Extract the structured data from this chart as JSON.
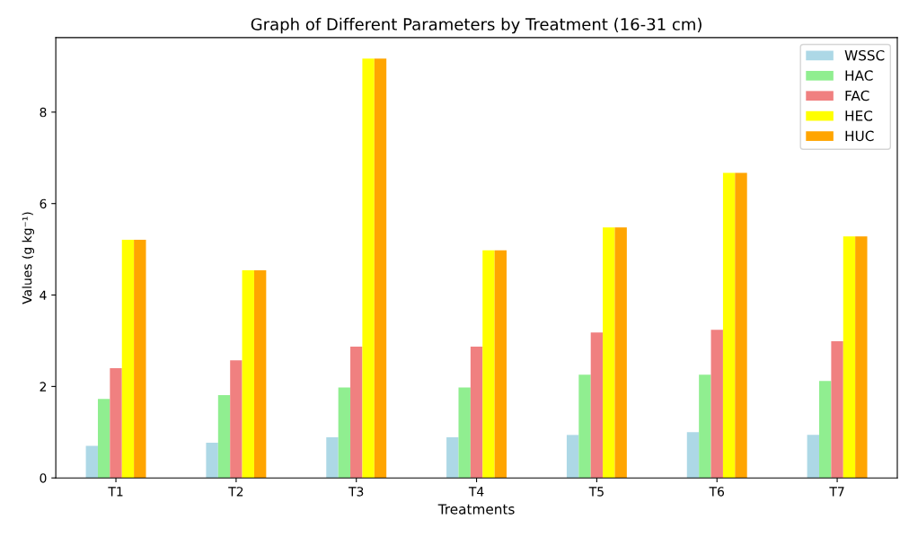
{
  "chart_data": {
    "type": "bar",
    "title": "Graph of Different Parameters by Treatment (16-31 cm)",
    "xlabel": "Treatments",
    "ylabel": "Values (g kg⁻¹)",
    "categories": [
      "T1",
      "T2",
      "T3",
      "T4",
      "T5",
      "T6",
      "T7"
    ],
    "series": [
      {
        "name": "WSSC",
        "color": "#add8e6",
        "values": [
          0.7,
          0.77,
          0.89,
          0.89,
          0.94,
          1.0,
          0.94
        ]
      },
      {
        "name": "HAC",
        "color": "#90ee90",
        "values": [
          1.73,
          1.81,
          1.98,
          1.98,
          2.26,
          2.26,
          2.12
        ]
      },
      {
        "name": "FAC",
        "color": "#f08080",
        "values": [
          2.4,
          2.57,
          2.87,
          2.87,
          3.18,
          3.24,
          2.99
        ]
      },
      {
        "name": "HEC",
        "color": "#ffff00",
        "values": [
          5.21,
          4.54,
          9.17,
          4.98,
          5.48,
          6.67,
          5.28
        ]
      },
      {
        "name": "HUC",
        "color": "#ffa500",
        "values": [
          5.21,
          4.54,
          9.17,
          4.98,
          5.48,
          6.67,
          5.28
        ]
      }
    ],
    "ylim": [
      0,
      9.63
    ],
    "yticks": [
      0,
      2,
      4,
      6,
      8
    ],
    "grid": false,
    "legend": "top right"
  }
}
